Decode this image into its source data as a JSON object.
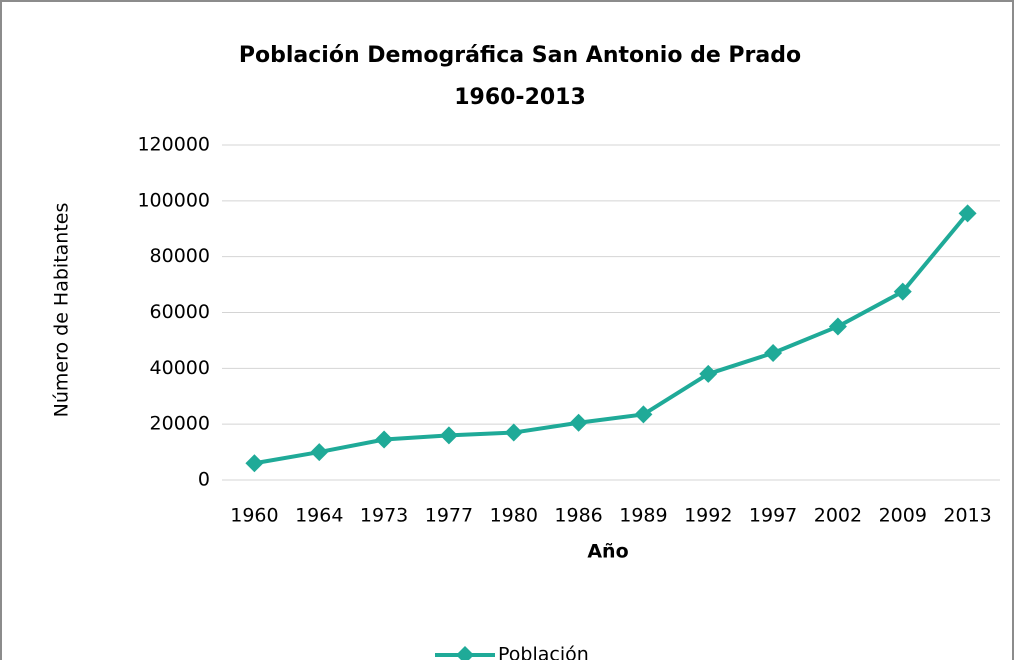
{
  "chart_data": {
    "type": "line",
    "title": "Población Demográfica San Antonio de Prado",
    "subtitle": "1960-2013",
    "x_label": "Año",
    "y_label": "Número de Habitantes",
    "categories": [
      "1960",
      "1964",
      "1973",
      "1977",
      "1980",
      "1986",
      "1989",
      "1992",
      "1997",
      "2002",
      "2009",
      "2013"
    ],
    "series": [
      {
        "name": "Población",
        "color": "#1faa98",
        "values": [
          6000,
          10000,
          14500,
          16000,
          17000,
          20500,
          23500,
          38000,
          45500,
          55000,
          67500,
          95500
        ]
      }
    ],
    "ylim": [
      0,
      120000
    ],
    "yticks": [
      0,
      20000,
      40000,
      60000,
      80000,
      100000,
      120000
    ],
    "grid": true,
    "legend": "bottom"
  }
}
